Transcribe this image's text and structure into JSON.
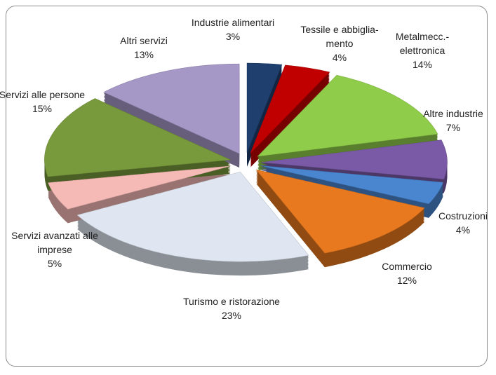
{
  "chart_data": {
    "type": "pie",
    "categories": [
      "Industrie alimentari",
      "Tessile e abbiglia-mento",
      "Metalmecc.-elettronica",
      "Altre industrie",
      "Costruzioni",
      "Commercio",
      "Turismo e ristorazione",
      "Servizi avanzati alle imprese",
      "Servizi alle persone",
      "Altri servizi"
    ],
    "values": [
      3,
      4,
      14,
      7,
      4,
      12,
      23,
      5,
      15,
      13
    ],
    "value_labels": [
      "3%",
      "4%",
      "14%",
      "7%",
      "4%",
      "12%",
      "23%",
      "5%",
      "15%",
      "13%"
    ],
    "colors": [
      "#1f3f6e",
      "#c00000",
      "#8fcc4a",
      "#7a5aa6",
      "#4a86d0",
      "#e8791f",
      "#dfe6f1",
      "#f5b9b6",
      "#789a3c",
      "#a597c6"
    ]
  }
}
